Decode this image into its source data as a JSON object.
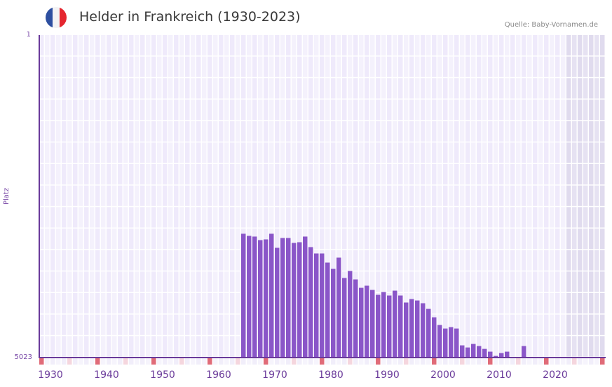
{
  "header": {
    "title": "Helder in Frankreich (1930-2023)",
    "source": "Quelle: Baby-Vornamen.de",
    "flag_icon": "france-flag-icon",
    "flag_colors": [
      "#2d4fa0",
      "#f2f2f4",
      "#e5262f"
    ]
  },
  "colors": {
    "bar": "#8a56c8",
    "axis": "#6a3a9a",
    "grid_a": "#efeafb",
    "grid_b": "#f4f1fc",
    "future_shade": "#e3dff0",
    "decade_marker": "#e06b78",
    "half_decade_marker": "#f5d6de"
  },
  "axes": {
    "y_label": "Platz",
    "y_top": "1",
    "y_bottom": "5023",
    "x_ticks": [
      "1930",
      "1940",
      "1950",
      "1960",
      "1970",
      "1980",
      "1990",
      "2000",
      "2010",
      "2020"
    ]
  },
  "chart_data": {
    "type": "bar",
    "title": "Helder in Frankreich (1930-2023)",
    "xlabel": "",
    "ylabel": "Platz",
    "y_inverted": true,
    "ylim": [
      5023,
      1
    ],
    "x_range": [
      1928,
      2028
    ],
    "shaded_future_from": 2022,
    "grid": true,
    "legend": "none",
    "x": [
      1964,
      1965,
      1966,
      1967,
      1968,
      1969,
      1970,
      1971,
      1972,
      1973,
      1974,
      1975,
      1976,
      1977,
      1978,
      1979,
      1980,
      1981,
      1982,
      1983,
      1984,
      1985,
      1986,
      1987,
      1988,
      1989,
      1990,
      1991,
      1992,
      1993,
      1994,
      1995,
      1996,
      1997,
      1998,
      1999,
      2000,
      2001,
      2002,
      2003,
      2004,
      2005,
      2006,
      2007,
      2008,
      2009,
      2010,
      2011,
      2012,
      2014
    ],
    "values": [
      3095,
      3128,
      3139,
      3194,
      3183,
      3095,
      3314,
      3161,
      3161,
      3238,
      3227,
      3139,
      3303,
      3402,
      3402,
      3544,
      3642,
      3467,
      3784,
      3675,
      3806,
      3937,
      3904,
      3970,
      4046,
      4003,
      4057,
      3981,
      4057,
      4166,
      4112,
      4134,
      4177,
      4265,
      4396,
      4516,
      4571,
      4549,
      4571,
      4833,
      4866,
      4811,
      4844,
      4888,
      4931,
      4997,
      4953,
      4931,
      5030,
      4844
    ]
  }
}
